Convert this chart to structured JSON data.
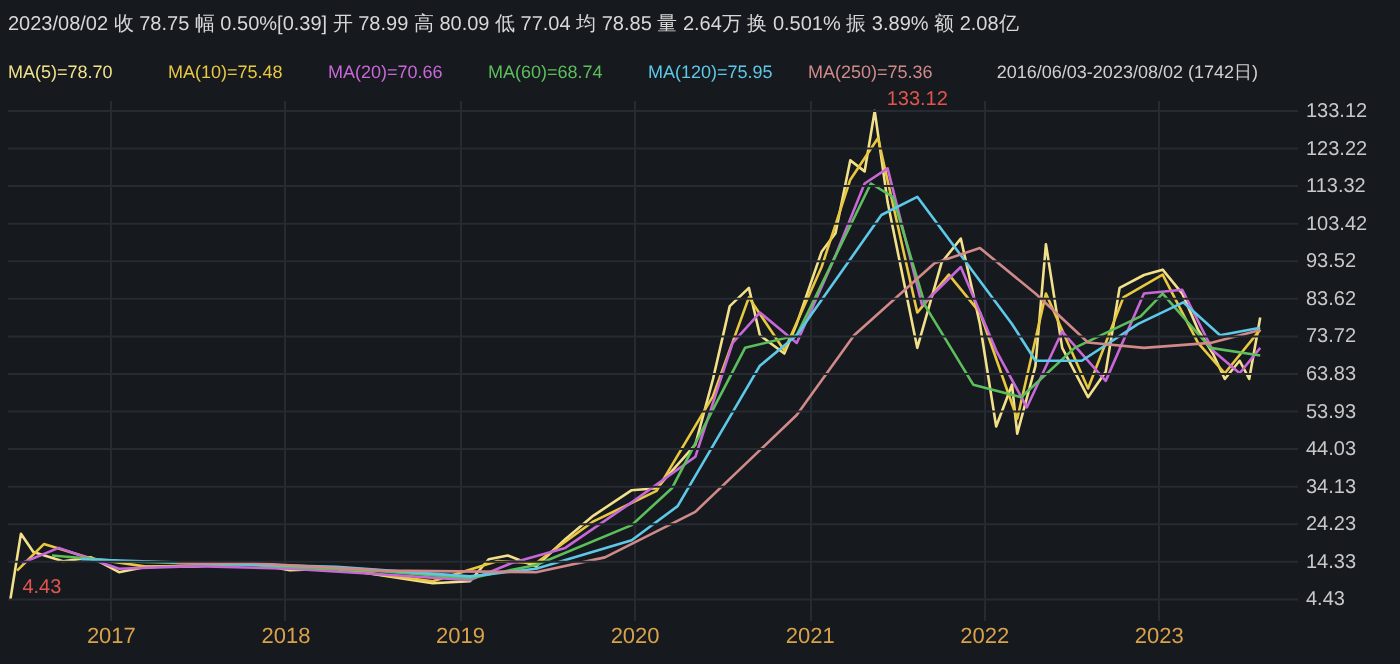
{
  "chart_data": {
    "type": "line",
    "title": "2023/08/02  收 78.75  幅 0.50%[0.39]  开 78.99  高 80.09  低 77.04  均 78.85  量 2.64万  换 0.501%  振 3.89%  额 2.08亿",
    "annotations": [
      "2016/06/03-2023/08/02 (1742日)",
      {
        "text": "133.12",
        "x": "2021-05-18",
        "y": 133.12
      },
      {
        "text": "4.43",
        "x": "2016-06-06",
        "y": 4.43
      }
    ],
    "legend": "top left",
    "grid": true,
    "marker": "none",
    "line_style": "solid",
    "xlim": [
      "2016-06-01",
      "2023-10-20"
    ],
    "xticks": [
      "2017",
      "2018",
      "2019",
      "2020",
      "2021",
      "2022",
      "2023"
    ],
    "ylim": [
      -1,
      136
    ],
    "yticks": [
      4.43,
      14.33,
      24.23,
      34.13,
      44.03,
      53.93,
      63.83,
      73.72,
      83.62,
      93.52,
      103.42,
      113.32,
      123.22,
      133.12
    ],
    "series": [
      {
        "name": "MA(5)=78.70",
        "color": "#f2e08a",
        "x": [
          "2016-06-06",
          "2016-06-28",
          "2016-07-24",
          "2016-09-24",
          "2016-11-22",
          "2017-01-19",
          "2017-03-20",
          "2017-06-28",
          "2017-10-23",
          "2018-01-11",
          "2018-04-19",
          "2018-07-27",
          "2018-11-06",
          "2019-01-23",
          "2019-03-03",
          "2019-04-12",
          "2019-06-10",
          "2019-08-10",
          "2019-10-08",
          "2019-12-27",
          "2020-02-17",
          "2020-05-08",
          "2020-06-14",
          "2020-07-19",
          "2020-08-28",
          "2020-09-20",
          "2020-11-10",
          "2020-12-06",
          "2021-01-27",
          "2021-02-25",
          "2021-03-28",
          "2021-04-27",
          "2021-05-18",
          "2021-06-14",
          "2021-08-15",
          "2021-10-05",
          "2021-11-14",
          "2021-12-24",
          "2022-01-27",
          "2022-03-01",
          "2022-03-12",
          "2022-04-19",
          "2022-05-11",
          "2022-06-14",
          "2022-08-07",
          "2022-09-13",
          "2022-10-12",
          "2022-12-02",
          "2023-01-10",
          "2023-02-20",
          "2023-03-25",
          "2023-04-25",
          "2023-05-20",
          "2023-06-20",
          "2023-07-10",
          "2023-08-02"
        ],
        "values": [
          4.43,
          21.7,
          16.9,
          14.5,
          15.5,
          11.6,
          13.1,
          13.1,
          14.0,
          12.1,
          12.6,
          10.7,
          8.7,
          9.2,
          15.0,
          16.0,
          13.1,
          20.3,
          26.5,
          33.2,
          33.7,
          45.2,
          62.5,
          81.7,
          86.5,
          74,
          69.2,
          77,
          96,
          100.9,
          120.1,
          117.2,
          133.12,
          109.1,
          70.7,
          93.2,
          99.5,
          77,
          50,
          61,
          48.1,
          65.9,
          98,
          70.7,
          57.7,
          64.4,
          86.5,
          89.9,
          91.3,
          85,
          75.5,
          69.2,
          62.5,
          67.3,
          62.5,
          78.7
        ]
      },
      {
        "name": "MA(10)=75.48",
        "color": "#e8c840",
        "x": [
          "2016-06-20",
          "2016-08-15",
          "2016-11-22",
          "2017-03-20",
          "2017-10-23",
          "2018-04-19",
          "2018-11-06",
          "2019-03-20",
          "2019-06-10",
          "2019-10-08",
          "2020-02-17",
          "2020-06-14",
          "2020-08-28",
          "2020-11-10",
          "2021-01-27",
          "2021-03-28",
          "2021-05-25",
          "2021-08-15",
          "2021-10-20",
          "2021-12-24",
          "2022-03-12",
          "2022-05-11",
          "2022-08-07",
          "2022-10-20",
          "2023-01-10",
          "2023-03-25",
          "2023-05-20",
          "2023-08-02"
        ],
        "values": [
          12,
          19,
          15.2,
          13,
          13.8,
          12.4,
          9.2,
          14.5,
          14,
          25,
          33,
          58,
          84,
          70,
          92,
          115,
          126,
          80,
          90,
          80,
          52,
          85,
          60,
          84,
          90,
          72,
          64,
          75.5
        ]
      },
      {
        "name": "MA(20)=70.66",
        "color": "#c868d8",
        "x": [
          "2016-06-30",
          "2016-09-15",
          "2017-01-19",
          "2017-06-28",
          "2018-01-11",
          "2018-07-27",
          "2019-01-23",
          "2019-04-20",
          "2019-08-10",
          "2019-12-27",
          "2020-05-08",
          "2020-07-25",
          "2020-09-20",
          "2020-12-06",
          "2021-02-25",
          "2021-04-27",
          "2021-06-14",
          "2021-08-25",
          "2021-11-14",
          "2022-01-27",
          "2022-04-01",
          "2022-06-14",
          "2022-09-13",
          "2022-12-02",
          "2023-02-20",
          "2023-04-25",
          "2023-06-20",
          "2023-08-02"
        ],
        "values": [
          14,
          18,
          12.5,
          13.2,
          12.5,
          11,
          9.5,
          14,
          18,
          30,
          42,
          72,
          80,
          72,
          95,
          114,
          118,
          82,
          92,
          70,
          55,
          75,
          62,
          85,
          86,
          70,
          64,
          70.7
        ]
      },
      {
        "name": "MA(60)=68.74",
        "color": "#5cbf5c",
        "x": [
          "2016-09-01",
          "2017-01-19",
          "2017-10-23",
          "2018-07-27",
          "2019-01-23",
          "2019-06-10",
          "2019-12-27",
          "2020-03-20",
          "2020-08-20",
          "2020-12-06",
          "2021-05-10",
          "2021-06-25",
          "2021-09-01",
          "2021-12-10",
          "2022-03-20",
          "2022-07-10",
          "2022-11-25",
          "2023-01-10",
          "2023-04-20",
          "2023-08-02"
        ],
        "values": [
          16,
          14.5,
          13.5,
          11.8,
          10,
          13.5,
          24,
          33.7,
          70.7,
          74,
          114,
          110.5,
          81.7,
          61,
          57.7,
          70.7,
          79,
          85,
          70.7,
          68.7
        ]
      },
      {
        "name": "MA(120)=75.95",
        "color": "#5ec8e8",
        "x": [
          "2016-11-01",
          "2017-06-28",
          "2018-04-19",
          "2019-01-23",
          "2019-06-10",
          "2019-12-27",
          "2020-04-01",
          "2020-09-20",
          "2020-12-06",
          "2021-06-01",
          "2021-08-15",
          "2022-03-01",
          "2022-04-19",
          "2022-07-25",
          "2022-11-20",
          "2023-02-22",
          "2023-05-10",
          "2023-08-02"
        ],
        "values": [
          15,
          14,
          13,
          10.5,
          12.5,
          20,
          29,
          66,
          74,
          105.7,
          110.5,
          77,
          67.3,
          67.3,
          77,
          82.7,
          74,
          76.0
        ]
      },
      {
        "name": "MA(250)=75.36",
        "color": "#d08a8a",
        "x": [
          "2017-05-20",
          "2017-10-23",
          "2018-07-27",
          "2019-06-10",
          "2019-11-01",
          "2020-05-08",
          "2020-12-06",
          "2021-04-05",
          "2021-09-20",
          "2021-12-24",
          "2022-04-19",
          "2022-08-07",
          "2022-12-02",
          "2023-04-20",
          "2023-08-02"
        ],
        "values": [
          14,
          14,
          12,
          11.6,
          15.5,
          27.5,
          53,
          74,
          93,
          97,
          85,
          72.1,
          70.7,
          72,
          75.4
        ]
      }
    ]
  }
}
